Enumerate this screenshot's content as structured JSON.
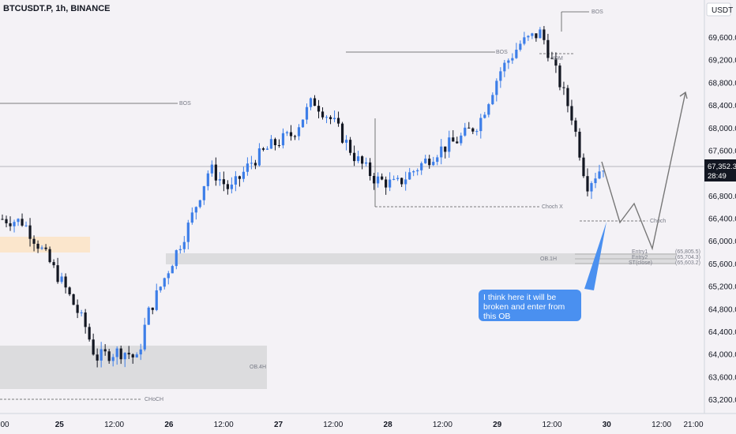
{
  "header": {
    "title": "BTCUSDT.P, 1h, BINANCE"
  },
  "currency": "USDT",
  "last_price": {
    "value": "67,352.3",
    "countdown": "28:49"
  },
  "colors": {
    "up": "#3d7ee8",
    "down": "#131722",
    "background": "#f4f2f6",
    "zone_orange": "#fbe6cc",
    "zone_gray": "#dcdcde",
    "callout": "#4a90f0"
  },
  "chart_data": {
    "type": "candlestick",
    "symbol": "BTCUSDT.P",
    "timeframe": "1h",
    "ylim": [
      63000,
      70200
    ],
    "y_ticks": [
      "69,600.0",
      "69,200.0",
      "68,800.0",
      "68,400.0",
      "68,000.0",
      "67,600.0",
      "67,200.0",
      "66,800.0",
      "66,400.0",
      "66,000.0",
      "65,600.0",
      "65,200.0",
      "64,800.0",
      "64,400.0",
      "64,000.0",
      "63,600.0",
      "63,200.0"
    ],
    "x_ticks": [
      "00",
      "25",
      "12:00",
      "26",
      "12:00",
      "27",
      "12:00",
      "28",
      "12:00",
      "29",
      "12:00",
      "30",
      "12:00",
      "21:00"
    ],
    "candle_count": 153,
    "closes_sample": [
      [
        0,
        66400
      ],
      [
        10,
        66350
      ],
      [
        20,
        65800
      ],
      [
        30,
        65200
      ],
      [
        40,
        64500
      ],
      [
        45,
        63950
      ],
      [
        55,
        64050
      ],
      [
        60,
        64050
      ],
      [
        65,
        63900
      ],
      [
        70,
        64700
      ],
      [
        80,
        65500
      ],
      [
        90,
        66300
      ],
      [
        100,
        67300
      ],
      [
        110,
        66900
      ],
      [
        120,
        67400
      ],
      [
        130,
        67700
      ],
      [
        140,
        67900
      ],
      [
        150,
        68500
      ],
      [
        160,
        68100
      ],
      [
        170,
        67500
      ],
      [
        180,
        67100
      ],
      [
        190,
        67000
      ],
      [
        200,
        67300
      ],
      [
        210,
        67600
      ],
      [
        220,
        67800
      ],
      [
        230,
        68100
      ],
      [
        240,
        69000
      ],
      [
        250,
        69500
      ],
      [
        260,
        69700
      ],
      [
        275,
        68200
      ],
      [
        282,
        67000
      ],
      [
        290,
        67350
      ]
    ],
    "levels": [
      {
        "label": "BOS",
        "price": 68500
      },
      {
        "label": "BOS",
        "price": 69550
      },
      {
        "label": "BOS",
        "price": 70150
      },
      {
        "label": "Choch X",
        "price": 66550
      },
      {
        "label": "Choch",
        "price": 66400
      },
      {
        "label": "CHoCH",
        "price": 63300
      },
      {
        "label": "OB.1H",
        "price": 65700
      },
      {
        "label": "OB.4H",
        "price": 63850
      }
    ],
    "entries": [
      {
        "label": "Entry1",
        "price": "(65,805.5)"
      },
      {
        "label": "Entry2",
        "price": "(65,704.3)"
      },
      {
        "label": "ST(close)",
        "price": "(65,603.2)"
      }
    ],
    "annotation": "I think here it will be broken and enter from this OB"
  },
  "labels": {
    "bos1": "BOS",
    "bos2": "BOS",
    "bos3": "BOS",
    "chochx": "Choch X",
    "choch": "Choch",
    "choch_low": "CHoCH",
    "idm": "IDM",
    "ob1h": "OB.1H",
    "ob4h": "OB.4H",
    "entry1": "Entry1",
    "entry2": "Entry2",
    "stclose": "ST(close)",
    "entry1_val": "(65,805.5)",
    "entry2_val": "(65,704.3)",
    "st_val": "(65,603.2)"
  },
  "callout": {
    "text": "I think here it will be broken and enter from this OB"
  }
}
